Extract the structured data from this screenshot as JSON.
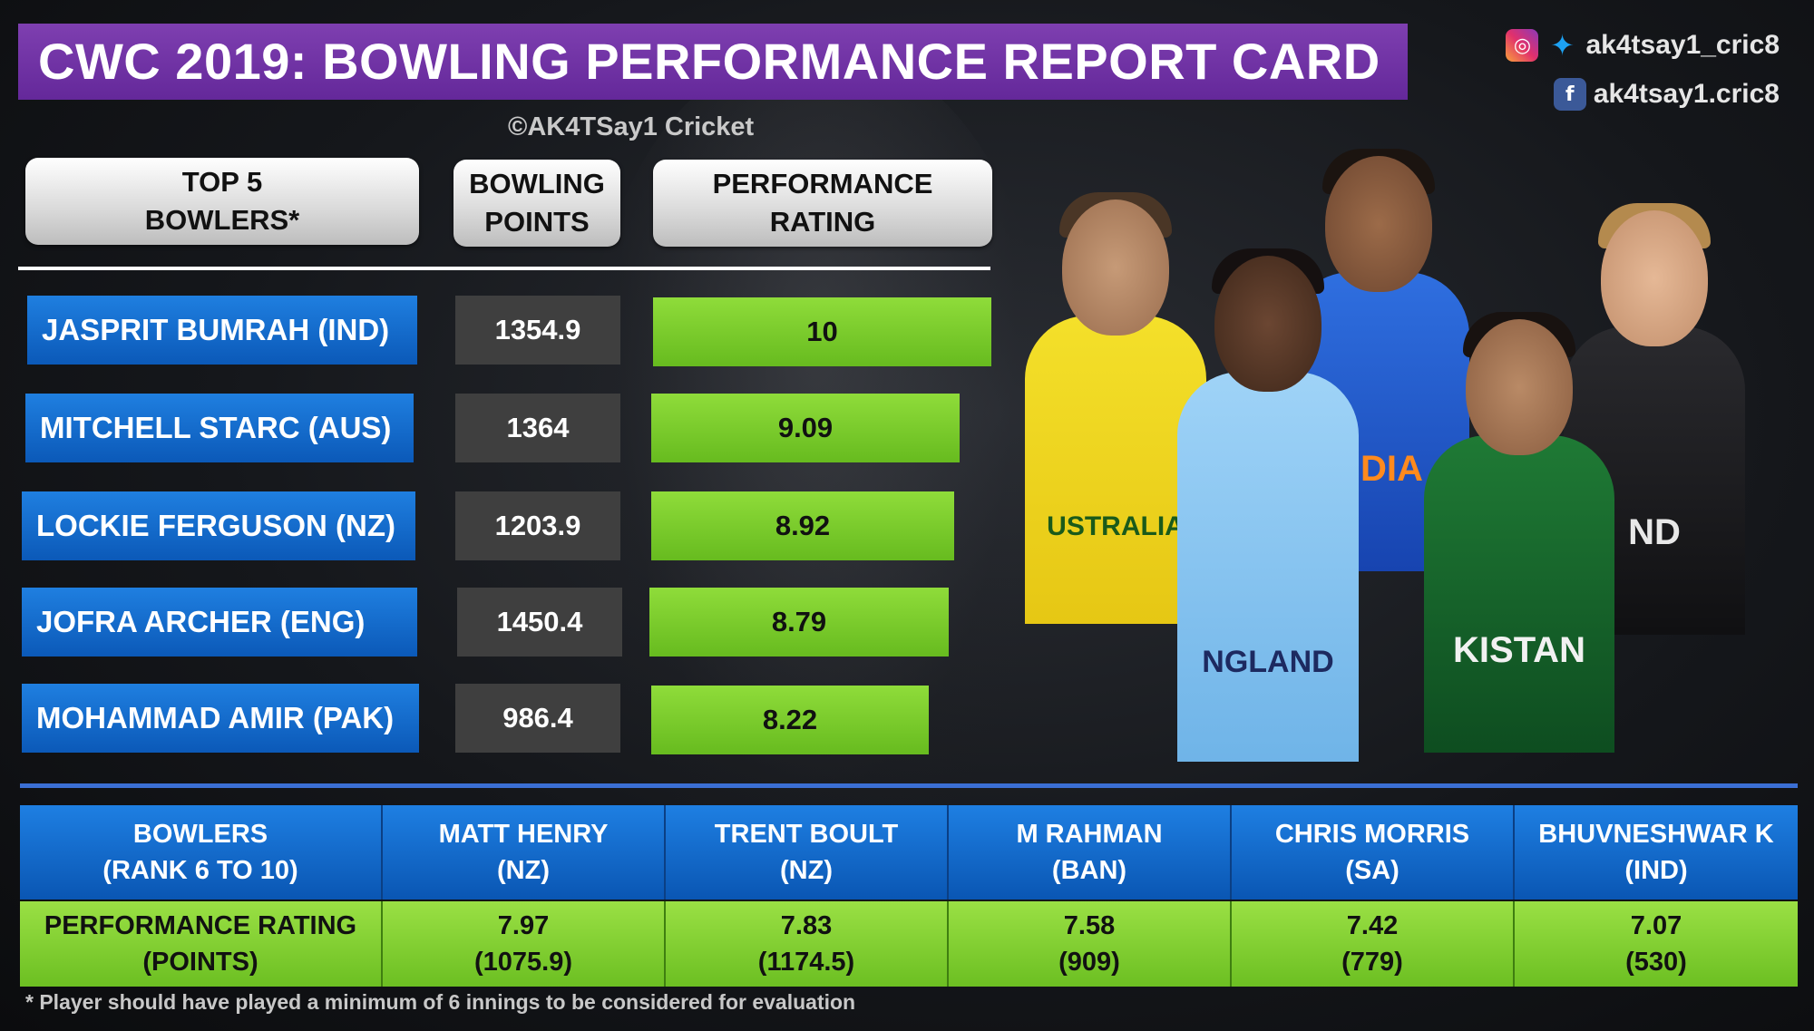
{
  "title": "CWC 2019: BOWLING PERFORMANCE REPORT CARD",
  "copyright": "©AK4TSay1 Cricket",
  "social": {
    "twitter_instagram_handle": "ak4tsay1_cric8",
    "facebook_handle": "ak4tsay1.cric8",
    "icons": [
      "instagram-icon",
      "twitter-icon",
      "facebook-icon"
    ]
  },
  "headers": {
    "top5": [
      "TOP 5",
      "BOWLERS*"
    ],
    "points": [
      "BOWLING",
      "POINTS"
    ],
    "rating": [
      "PERFORMANCE",
      "RATING"
    ]
  },
  "top5": [
    {
      "name": "JASPRIT BUMRAH (IND)",
      "points": "1354.9",
      "rating": "10"
    },
    {
      "name": "MITCHELL STARC (AUS)",
      "points": "1364",
      "rating": "9.09"
    },
    {
      "name": "LOCKIE FERGUSON (NZ)",
      "points": "1203.9",
      "rating": "8.92"
    },
    {
      "name": "JOFRA ARCHER (ENG)",
      "points": "1450.4",
      "rating": "8.79"
    },
    {
      "name": "MOHAMMAD AMIR (PAK)",
      "points": "986.4",
      "rating": "8.22"
    }
  ],
  "players_jersey_text": [
    "USTRALIA",
    "NDIA",
    "ND",
    "NGLAND",
    "KISTAN"
  ],
  "table": {
    "head_label": [
      "BOWLERS",
      "(RANK 6 TO 10)"
    ],
    "row_label": [
      "PERFORMANCE RATING",
      "(POINTS)"
    ],
    "bowlers": [
      {
        "name": "MATT HENRY",
        "team": "(NZ)",
        "rating": "7.97",
        "points": "(1075.9)"
      },
      {
        "name": "TRENT BOULT",
        "team": "(NZ)",
        "rating": "7.83",
        "points": "(1174.5)"
      },
      {
        "name": "M RAHMAN",
        "team": "(BAN)",
        "rating": "7.58",
        "points": "(909)"
      },
      {
        "name": "CHRIS MORRIS",
        "team": "(SA)",
        "rating": "7.42",
        "points": "(779)"
      },
      {
        "name": "BHUVNESHWAR K",
        "team": "(IND)",
        "rating": "7.07",
        "points": "(530)"
      }
    ]
  },
  "footnote": "* Player should have played a minimum of 6 innings to be considered for evaluation",
  "colors": {
    "title_bg": "#6f30a0",
    "name_bg": "#1565c0",
    "rating_bg": "#7ccf2e",
    "points_bg": "#3f3f3f"
  }
}
